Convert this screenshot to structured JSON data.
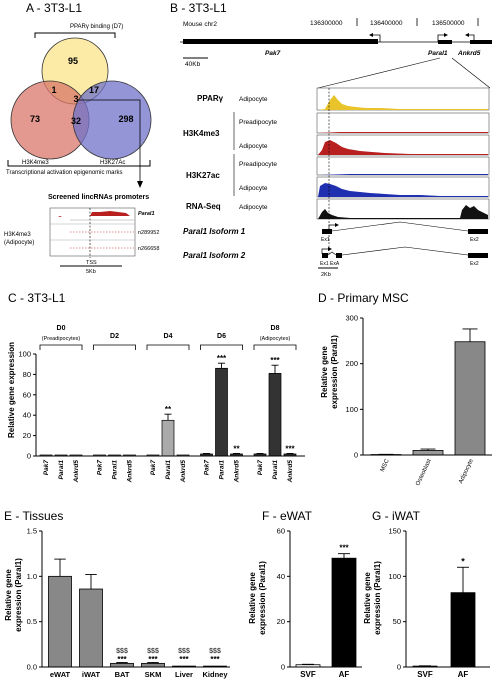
{
  "panels": {
    "A": {
      "title": "A - 3T3-L1",
      "pparg_label": "PPARγ binding (D7)",
      "venn": {
        "pparg_only": "95",
        "h3k4_only": "73",
        "h3k27_only": "298",
        "pparg_h3k4": "1",
        "pparg_h3k27": "17",
        "h3k4_h3k27": "32",
        "all": "3"
      },
      "h3k4_label": "H3K4me3",
      "h3k27_label": "H3K27Ac",
      "marks_caption": "Transcriptional activation epigenomic marks",
      "screened_label": "Screened lincRNAs promoters",
      "track_label_1": "H3K4me3",
      "track_label_2": "(Adipocyte)",
      "genes": [
        "Paral1",
        "n289952",
        "n266658"
      ],
      "tss_label": "TSS",
      "scale_label": "5Kb"
    },
    "B": {
      "title": "B - 3T3-L1",
      "chrom": "Mouse chr2",
      "coords": [
        "136300000",
        "136400000",
        "136500000"
      ],
      "gene_pak7": "Pak7",
      "gene_paral1": "Paral1",
      "gene_ankrd5": "Ankrd5",
      "scale_top": "40Kb",
      "tracks": [
        {
          "mark": "PPARγ",
          "cell": "Adipocyte"
        },
        {
          "mark": "H3K4me3",
          "cell": "Preadipocyte"
        },
        {
          "mark": "",
          "cell": "Adipocyte"
        },
        {
          "mark": "H3K27ac",
          "cell": "Preadipocyte"
        },
        {
          "mark": "",
          "cell": "Adipocyte"
        },
        {
          "mark": "RNA-Seq",
          "cell": "Adipocyte"
        }
      ],
      "isoform1": "Paral1 Isoform 1",
      "isoform2": "Paral1 Isoform 2",
      "ex1": "Ex1",
      "ex2": "Ex2",
      "ex1a": "Ex1 ExA",
      "scale_bottom": "2Kb",
      "colors": {
        "pparg": "#e8c42a",
        "h3k4": "#b81f1f",
        "h3k27": "#1f2fb0",
        "rna": "#111111"
      }
    },
    "C": {
      "title": "C - 3T3-L1",
      "ylabel": "Relative gene expression",
      "days": [
        {
          "day": "D0",
          "sub": "(Preadipocytes)"
        },
        {
          "day": "D2",
          "sub": ""
        },
        {
          "day": "D4",
          "sub": ""
        },
        {
          "day": "D6",
          "sub": ""
        },
        {
          "day": "D8",
          "sub": "(Adipocytes)"
        }
      ],
      "genes": [
        "Pak7",
        "Paral1",
        "Ankrd5"
      ],
      "yticks": [
        "0",
        "20",
        "40",
        "60",
        "80",
        "100"
      ],
      "stars": [
        "**",
        "***",
        "**",
        "***",
        "***"
      ]
    },
    "D": {
      "title": "D - Primary MSC",
      "ylabel_1": "Relative gene",
      "ylabel_2": "expression (Paral1)",
      "yticks": [
        "0",
        "100",
        "200",
        "300"
      ],
      "categories": [
        "MSC",
        "Osteoblast",
        "Adipocyte"
      ]
    },
    "E": {
      "title": "E - Tissues",
      "ylabel_1": "Relative gene",
      "ylabel_2": "expression (Paral1)",
      "yticks": [
        "0.0",
        "0.5",
        "1.0",
        "1.5"
      ],
      "categories": [
        "eWAT",
        "iWAT",
        "BAT",
        "SKM",
        "Liver",
        "Kidney"
      ],
      "sig_dollar": "$$$",
      "sig_star": "***"
    },
    "F": {
      "title": "F - eWAT",
      "ylabel_1": "Relative gene",
      "ylabel_2": "expression (Paral1)",
      "yticks": [
        "0",
        "20",
        "40",
        "60"
      ],
      "categories": [
        "SVF",
        "AF"
      ],
      "star": "***"
    },
    "G": {
      "title": "G - iWAT",
      "ylabel_1": "Relative gene",
      "ylabel_2": "expression (Paral1)",
      "yticks": [
        "0",
        "50",
        "100",
        "150"
      ],
      "categories": [
        "SVF",
        "AF"
      ],
      "star": "*"
    }
  },
  "chart_data": [
    {
      "type": "bar",
      "title": "C - 3T3-L1",
      "categories": [
        "D0 Pak7",
        "D0 Paral1",
        "D0 Ankrd5",
        "D2 Pak7",
        "D2 Paral1",
        "D2 Ankrd5",
        "D4 Pak7",
        "D4 Paral1",
        "D4 Ankrd5",
        "D6 Pak7",
        "D6 Paral1",
        "D6 Ankrd5",
        "D8 Pak7",
        "D8 Paral1",
        "D8 Ankrd5"
      ],
      "values": [
        1,
        1,
        1,
        1,
        1,
        1,
        1,
        35,
        1,
        2,
        86,
        2,
        2,
        81,
        2
      ],
      "errors": [
        0.3,
        0.3,
        0.3,
        0.3,
        0.3,
        0.3,
        0.3,
        6,
        0.3,
        0.5,
        5,
        0.5,
        0.5,
        8,
        0.5
      ],
      "ylabel": "Relative gene expression",
      "ylim": [
        0,
        100
      ]
    },
    {
      "type": "bar",
      "title": "D - Primary MSC",
      "categories": [
        "MSC",
        "Osteoblast",
        "Adipocyte"
      ],
      "values": [
        1,
        10,
        248
      ],
      "errors": [
        0.5,
        3,
        28
      ],
      "ylim": [
        0,
        300
      ]
    },
    {
      "type": "bar",
      "title": "E - Tissues",
      "categories": [
        "eWAT",
        "iWAT",
        "BAT",
        "SKM",
        "Liver",
        "Kidney"
      ],
      "values": [
        1.0,
        0.86,
        0.04,
        0.04,
        0.01,
        0.01
      ],
      "errors": [
        0.19,
        0.16,
        0.01,
        0.01,
        0.0,
        0.0
      ],
      "ylim": [
        0,
        1.5
      ]
    },
    {
      "type": "bar",
      "title": "F - eWAT",
      "categories": [
        "SVF",
        "AF"
      ],
      "values": [
        1,
        48
      ],
      "errors": [
        0.2,
        2
      ],
      "ylim": [
        0,
        60
      ]
    },
    {
      "type": "bar",
      "title": "G - iWAT",
      "categories": [
        "SVF",
        "AF"
      ],
      "values": [
        1,
        82
      ],
      "errors": [
        0.3,
        28
      ],
      "ylim": [
        0,
        150
      ]
    }
  ]
}
